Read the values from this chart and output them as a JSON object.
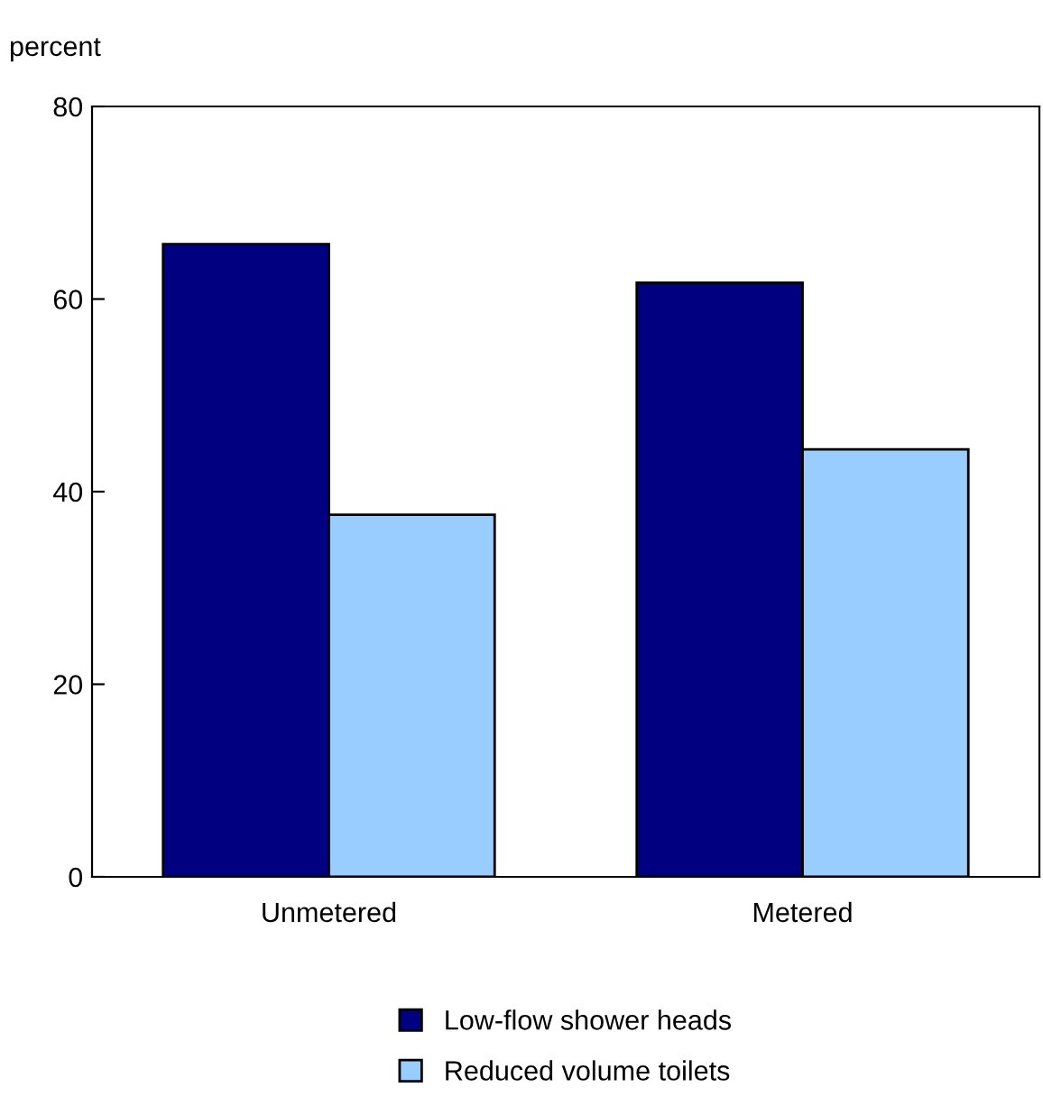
{
  "chart_data": {
    "type": "bar",
    "ylabel": "percent",
    "categories": [
      "Unmetered",
      "Metered"
    ],
    "series": [
      {
        "name": "Low-flow shower heads",
        "color": "#000080",
        "values": [
          65.7,
          61.7
        ]
      },
      {
        "name": "Reduced volume toilets",
        "color": "#99ccff",
        "values": [
          37.6,
          44.4
        ]
      }
    ],
    "ylim": [
      0,
      80
    ],
    "yticks": [
      0,
      20,
      40,
      60,
      80
    ],
    "grid": false,
    "legend": "bottom"
  }
}
